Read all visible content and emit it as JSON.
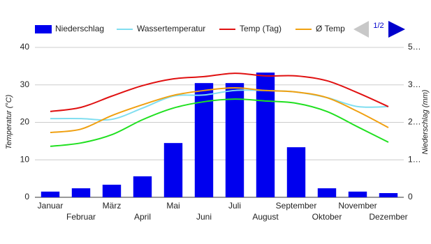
{
  "chart_data": {
    "type": "bar-line",
    "categories": [
      "Januar",
      "Februar",
      "März",
      "April",
      "Mai",
      "Juni",
      "Juli",
      "August",
      "September",
      "Oktober",
      "November",
      "Dezember"
    ],
    "y_label": "Temperatur (°C)",
    "y2_label": "Niederschlag (mm)",
    "ylim": [
      0,
      40
    ],
    "yticks": [
      0,
      10,
      20,
      30,
      40
    ],
    "y2lim": [
      0,
      500
    ],
    "y2ticks": [
      0,
      {
        "value": 125,
        "label": "1…"
      },
      {
        "value": 250,
        "label": "2…"
      },
      {
        "value": 375,
        "label": "3…"
      },
      {
        "value": 500,
        "label": "5…"
      }
    ],
    "grid": true,
    "legend_position": "top",
    "legend_page": "1/2",
    "series": [
      {
        "name": "Niederschlag",
        "type": "bar",
        "axis": "y2",
        "color": "#0000ee",
        "values": [
          19,
          30,
          42,
          70,
          181,
          381,
          381,
          416,
          167,
          30,
          19,
          14
        ]
      },
      {
        "name": "Wassertemperatur",
        "type": "line",
        "color": "#80def0",
        "values": [
          21,
          21,
          20.8,
          23.8,
          27,
          27.3,
          28.5,
          28.5,
          28.1,
          26.6,
          24.2,
          24.2
        ]
      },
      {
        "name": "Temp (Tag)",
        "type": "line",
        "color": "#e01010",
        "values": [
          22.9,
          24,
          27,
          29.8,
          31.6,
          32.2,
          33.1,
          32.4,
          32.4,
          31.1,
          27.9,
          24.2
        ]
      },
      {
        "name": "Ø Temp",
        "type": "line",
        "color": "#f0a010",
        "values": [
          17.3,
          18.2,
          21.8,
          24.7,
          27.2,
          28.5,
          29.2,
          28.5,
          28.1,
          26.6,
          22.9,
          18.6
        ]
      },
      {
        "type": "line",
        "color": "#20e020",
        "values": [
          13.6,
          14.5,
          16.7,
          20.7,
          23.8,
          25.5,
          26.2,
          25.7,
          25.1,
          22.9,
          18.8,
          14.7
        ]
      }
    ]
  }
}
